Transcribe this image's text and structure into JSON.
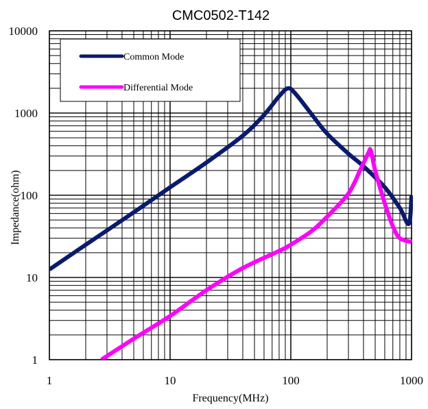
{
  "chart_data": {
    "type": "line",
    "title": "CMC0502-T142",
    "xlabel": "Frequency(MHz)",
    "ylabel": "Impedance(ohm)",
    "x_scale": "log",
    "y_scale": "log",
    "xlim": [
      1,
      1000
    ],
    "ylim": [
      1,
      10000
    ],
    "x_ticks": [
      "1",
      "10",
      "100",
      "1000"
    ],
    "y_ticks": [
      "1",
      "10",
      "100",
      "1000",
      "10000"
    ],
    "grid": true,
    "legend": "top-left",
    "series": [
      {
        "name": "Common Mode",
        "color": "#0a1a6e",
        "points": [
          [
            1,
            12.5
          ],
          [
            2,
            25
          ],
          [
            5,
            62
          ],
          [
            10,
            125
          ],
          [
            20,
            250
          ],
          [
            40,
            530
          ],
          [
            60,
            950
          ],
          [
            80,
            1600
          ],
          [
            95,
            2000
          ],
          [
            110,
            1700
          ],
          [
            150,
            950
          ],
          [
            200,
            560
          ],
          [
            300,
            320
          ],
          [
            400,
            225
          ],
          [
            600,
            125
          ],
          [
            800,
            70
          ],
          [
            950,
            45
          ],
          [
            1000,
            100
          ]
        ]
      },
      {
        "name": "Differential Mode",
        "color": "#ff00ff",
        "points": [
          [
            2.7,
            1
          ],
          [
            5,
            1.8
          ],
          [
            10,
            3.4
          ],
          [
            20,
            7
          ],
          [
            40,
            13
          ],
          [
            80,
            21
          ],
          [
            100,
            25
          ],
          [
            150,
            37
          ],
          [
            200,
            55
          ],
          [
            300,
            105
          ],
          [
            380,
            210
          ],
          [
            440,
            330
          ],
          [
            460,
            350
          ],
          [
            500,
            200
          ],
          [
            600,
            80
          ],
          [
            700,
            42
          ],
          [
            800,
            30
          ],
          [
            1000,
            27
          ]
        ]
      }
    ]
  }
}
